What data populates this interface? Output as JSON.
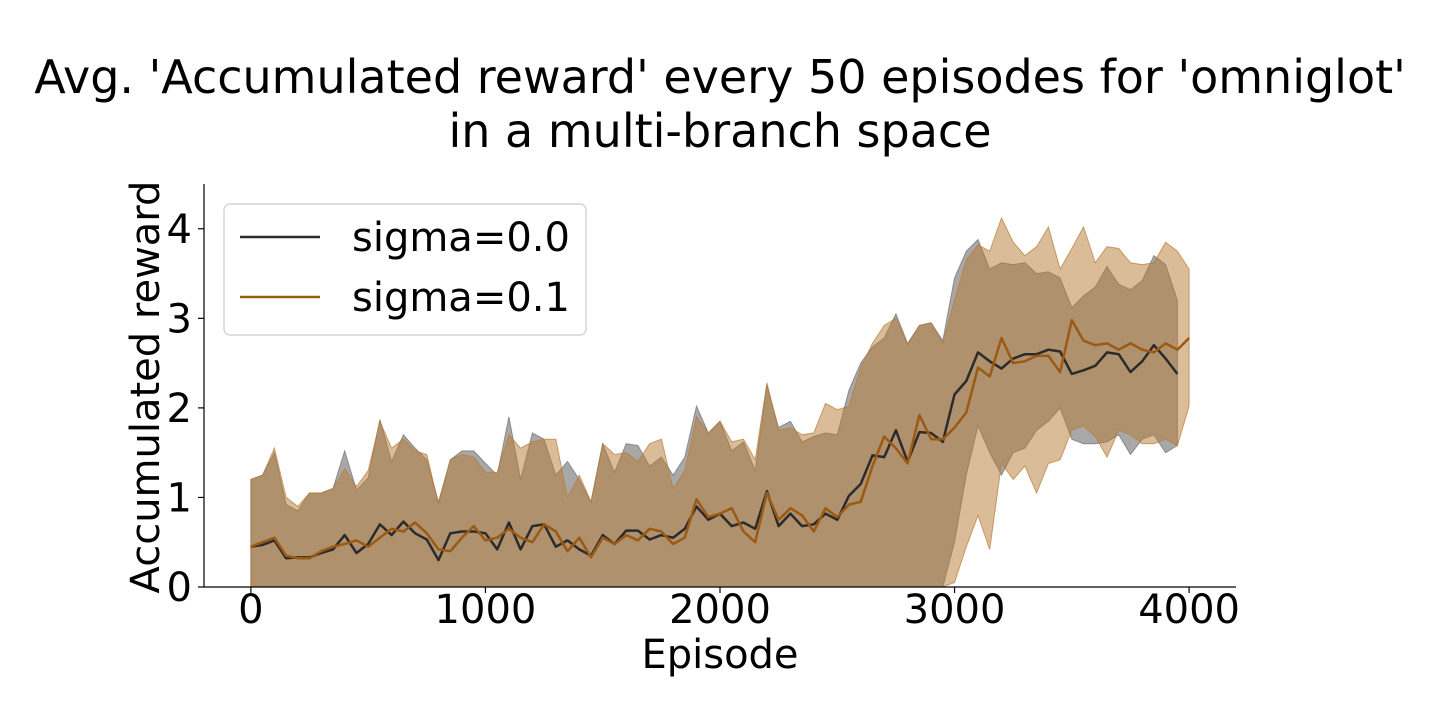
{
  "chart_data": {
    "type": "line",
    "title_line1": "Avg. 'Accumulated reward' every 50 episodes for 'omniglot'",
    "title_line2": "in a multi-branch space",
    "xlabel": "Episode",
    "ylabel": "Accumulated reward",
    "xlim": [
      -200,
      4200
    ],
    "ylim": [
      0,
      4.5
    ],
    "xticks": [
      0,
      1000,
      2000,
      3000,
      4000
    ],
    "yticks": [
      0,
      1,
      2,
      3,
      4
    ],
    "legend_position": "top-left",
    "shaded_band": "mean ± std",
    "series": [
      {
        "name": "sigma=0.0",
        "color": "#2b2b2b",
        "x": [
          0,
          50,
          100,
          150,
          200,
          250,
          300,
          350,
          400,
          450,
          500,
          550,
          600,
          650,
          700,
          750,
          800,
          850,
          900,
          950,
          1000,
          1050,
          1100,
          1150,
          1200,
          1250,
          1300,
          1350,
          1400,
          1450,
          1500,
          1550,
          1600,
          1650,
          1700,
          1750,
          1800,
          1850,
          1900,
          1950,
          2000,
          2050,
          2100,
          2150,
          2200,
          2250,
          2300,
          2350,
          2400,
          2450,
          2500,
          2550,
          2600,
          2650,
          2700,
          2750,
          2800,
          2850,
          2900,
          2950,
          3000,
          3050,
          3100,
          3150,
          3200,
          3250,
          3300,
          3350,
          3400,
          3450,
          3500,
          3550,
          3600,
          3650,
          3700,
          3750,
          3800,
          3850,
          3900,
          3950
        ],
        "y": [
          0.45,
          0.47,
          0.52,
          0.32,
          0.33,
          0.33,
          0.38,
          0.42,
          0.58,
          0.38,
          0.48,
          0.7,
          0.58,
          0.73,
          0.6,
          0.53,
          0.3,
          0.6,
          0.62,
          0.62,
          0.6,
          0.42,
          0.72,
          0.42,
          0.68,
          0.7,
          0.45,
          0.52,
          0.42,
          0.35,
          0.58,
          0.48,
          0.63,
          0.63,
          0.53,
          0.58,
          0.55,
          0.65,
          0.9,
          0.75,
          0.82,
          0.68,
          0.72,
          0.65,
          1.07,
          0.68,
          0.82,
          0.68,
          0.7,
          0.82,
          0.75,
          1.02,
          1.15,
          1.47,
          1.45,
          1.75,
          1.4,
          1.73,
          1.72,
          1.62,
          2.15,
          2.3,
          2.62,
          2.52,
          2.44,
          2.55,
          2.6,
          2.6,
          2.65,
          2.63,
          2.38,
          2.42,
          2.47,
          2.62,
          2.6,
          2.4,
          2.52,
          2.7,
          2.55,
          2.38
        ],
        "lower": [
          0,
          0,
          0,
          0,
          0,
          0,
          0,
          0,
          0,
          0,
          0,
          0,
          0,
          0,
          0,
          0,
          0,
          0,
          0,
          0,
          0,
          0,
          0,
          0,
          0,
          0,
          0,
          0,
          0,
          0,
          0,
          0,
          0,
          0,
          0,
          0,
          0,
          0,
          0,
          0,
          0,
          0,
          0,
          0,
          0,
          0,
          0,
          0,
          0,
          0,
          0,
          0,
          0,
          0,
          0,
          0,
          0,
          0,
          0,
          0,
          0.5,
          1.25,
          1.8,
          1.5,
          1.25,
          1.5,
          1.55,
          1.75,
          1.85,
          2.0,
          1.65,
          1.6,
          1.6,
          1.62,
          1.7,
          1.48,
          1.65,
          1.7,
          1.5,
          1.58
        ],
        "upper": [
          1.2,
          1.25,
          1.5,
          0.92,
          0.85,
          1.05,
          1.05,
          1.1,
          1.52,
          1.08,
          1.22,
          1.87,
          1.4,
          1.7,
          1.55,
          1.42,
          0.95,
          1.42,
          1.52,
          1.52,
          1.38,
          1.25,
          1.9,
          1.2,
          1.72,
          1.65,
          1.25,
          1.4,
          1.2,
          0.95,
          1.6,
          1.28,
          1.6,
          1.58,
          1.35,
          1.45,
          1.25,
          1.45,
          2.02,
          1.72,
          1.85,
          1.52,
          1.62,
          1.3,
          2.25,
          1.78,
          1.85,
          1.62,
          1.68,
          1.72,
          1.7,
          2.2,
          2.5,
          2.68,
          2.78,
          3.05,
          2.72,
          2.92,
          2.95,
          2.75,
          3.45,
          3.75,
          3.88,
          3.55,
          3.62,
          3.6,
          3.62,
          3.5,
          3.52,
          3.45,
          3.12,
          3.25,
          3.35,
          3.58,
          3.38,
          3.32,
          3.42,
          3.7,
          3.6,
          3.2
        ]
      },
      {
        "name": "sigma=0.1",
        "color": "#9a5a14",
        "x": [
          0,
          50,
          100,
          150,
          200,
          250,
          300,
          350,
          400,
          450,
          500,
          550,
          600,
          650,
          700,
          750,
          800,
          850,
          900,
          950,
          1000,
          1050,
          1100,
          1150,
          1200,
          1250,
          1300,
          1350,
          1400,
          1450,
          1500,
          1550,
          1600,
          1650,
          1700,
          1750,
          1800,
          1850,
          1900,
          1950,
          2000,
          2050,
          2100,
          2150,
          2200,
          2250,
          2300,
          2350,
          2400,
          2450,
          2500,
          2550,
          2600,
          2650,
          2700,
          2750,
          2800,
          2850,
          2900,
          2950,
          3000,
          3050,
          3100,
          3150,
          3200,
          3250,
          3300,
          3350,
          3400,
          3450,
          3500,
          3550,
          3600,
          3650,
          3700,
          3750,
          3800,
          3850,
          3900,
          3950,
          4000
        ],
        "y": [
          0.45,
          0.5,
          0.55,
          0.35,
          0.32,
          0.32,
          0.4,
          0.45,
          0.48,
          0.52,
          0.45,
          0.55,
          0.65,
          0.62,
          0.72,
          0.6,
          0.42,
          0.4,
          0.55,
          0.68,
          0.52,
          0.55,
          0.65,
          0.55,
          0.5,
          0.7,
          0.62,
          0.4,
          0.55,
          0.33,
          0.55,
          0.48,
          0.58,
          0.52,
          0.65,
          0.62,
          0.48,
          0.55,
          0.98,
          0.78,
          0.82,
          0.88,
          0.62,
          0.5,
          1.05,
          0.75,
          0.88,
          0.8,
          0.62,
          0.88,
          0.78,
          0.92,
          0.95,
          1.35,
          1.68,
          1.55,
          1.38,
          1.92,
          1.65,
          1.65,
          1.78,
          1.95,
          2.45,
          2.35,
          2.78,
          2.5,
          2.52,
          2.58,
          2.58,
          2.4,
          2.98,
          2.75,
          2.7,
          2.72,
          2.65,
          2.72,
          2.65,
          2.62,
          2.72,
          2.65,
          2.78
        ],
        "lower": [
          0,
          0,
          0,
          0,
          0,
          0,
          0,
          0,
          0,
          0,
          0,
          0,
          0,
          0,
          0,
          0,
          0,
          0,
          0,
          0,
          0,
          0,
          0,
          0,
          0,
          0,
          0,
          0,
          0,
          0,
          0,
          0,
          0,
          0,
          0,
          0,
          0,
          0,
          0,
          0,
          0,
          0,
          0,
          0,
          0,
          0,
          0,
          0,
          0,
          0,
          0,
          0,
          0,
          0,
          0,
          0,
          0,
          0,
          0,
          0,
          0.05,
          0.45,
          0.8,
          0.42,
          1.38,
          1.2,
          1.35,
          1.05,
          1.38,
          1.42,
          1.75,
          1.8,
          1.68,
          1.45,
          1.75,
          1.7,
          1.6,
          1.6,
          1.65,
          1.58,
          2.02
        ],
        "upper": [
          1.2,
          1.25,
          1.55,
          1.0,
          0.9,
          1.05,
          1.05,
          1.1,
          1.32,
          1.12,
          1.3,
          1.85,
          1.55,
          1.65,
          1.52,
          1.48,
          0.92,
          1.42,
          1.48,
          1.45,
          1.28,
          1.28,
          1.7,
          1.55,
          1.62,
          1.65,
          1.65,
          1.0,
          1.25,
          0.95,
          1.6,
          1.48,
          1.5,
          1.4,
          1.6,
          1.65,
          1.1,
          1.3,
          1.9,
          1.72,
          1.85,
          1.62,
          1.65,
          1.42,
          2.28,
          1.75,
          1.78,
          1.7,
          1.72,
          2.05,
          1.98,
          2.02,
          2.45,
          2.72,
          2.92,
          3.0,
          2.7,
          2.92,
          2.95,
          2.72,
          3.2,
          3.65,
          3.82,
          3.75,
          4.12,
          3.85,
          3.7,
          3.8,
          4.02,
          3.55,
          3.78,
          4.02,
          3.62,
          3.8,
          3.78,
          3.62,
          3.6,
          3.62,
          3.85,
          3.75,
          3.55
        ]
      }
    ]
  }
}
